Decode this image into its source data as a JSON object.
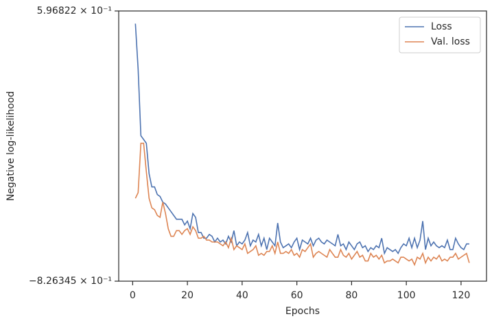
{
  "chart_data": {
    "type": "line",
    "xlabel": "Epochs",
    "ylabel": "Negative log-likelihood",
    "x": [
      1,
      2,
      3,
      4,
      5,
      6,
      7,
      8,
      9,
      10,
      11,
      12,
      13,
      14,
      15,
      16,
      17,
      18,
      19,
      20,
      21,
      22,
      23,
      24,
      25,
      26,
      27,
      28,
      29,
      30,
      31,
      32,
      33,
      34,
      35,
      36,
      37,
      38,
      39,
      40,
      41,
      42,
      43,
      44,
      45,
      46,
      47,
      48,
      49,
      50,
      51,
      52,
      53,
      54,
      55,
      56,
      57,
      58,
      59,
      60,
      61,
      62,
      63,
      64,
      65,
      66,
      67,
      68,
      69,
      70,
      71,
      72,
      73,
      74,
      75,
      76,
      77,
      78,
      79,
      80,
      81,
      82,
      83,
      84,
      85,
      86,
      87,
      88,
      89,
      90,
      91,
      92,
      93,
      94,
      95,
      96,
      97,
      98,
      99,
      100,
      101,
      102,
      103,
      104,
      105,
      106,
      107,
      108,
      109,
      110,
      111,
      112,
      113,
      114,
      115,
      116,
      117,
      118,
      119,
      120,
      121,
      122,
      123
    ],
    "series": [
      {
        "name": "Loss",
        "color": "#4c72b0",
        "values": [
          0.53,
          0.29,
          -0.06,
          -0.08,
          -0.1,
          -0.26,
          -0.33,
          -0.33,
          -0.37,
          -0.38,
          -0.41,
          -0.42,
          -0.44,
          -0.46,
          -0.48,
          -0.5,
          -0.5,
          -0.5,
          -0.53,
          -0.51,
          -0.55,
          -0.47,
          -0.49,
          -0.57,
          -0.57,
          -0.6,
          -0.6,
          -0.58,
          -0.59,
          -0.62,
          -0.6,
          -0.62,
          -0.61,
          -0.63,
          -0.59,
          -0.62,
          -0.56,
          -0.64,
          -0.62,
          -0.63,
          -0.61,
          -0.57,
          -0.64,
          -0.61,
          -0.62,
          -0.58,
          -0.64,
          -0.6,
          -0.66,
          -0.6,
          -0.62,
          -0.64,
          -0.52,
          -0.62,
          -0.65,
          -0.64,
          -0.63,
          -0.65,
          -0.62,
          -0.6,
          -0.66,
          -0.61,
          -0.62,
          -0.63,
          -0.6,
          -0.64,
          -0.61,
          -0.6,
          -0.62,
          -0.63,
          -0.61,
          -0.62,
          -0.63,
          -0.64,
          -0.58,
          -0.64,
          -0.63,
          -0.66,
          -0.62,
          -0.64,
          -0.66,
          -0.63,
          -0.62,
          -0.65,
          -0.64,
          -0.67,
          -0.65,
          -0.66,
          -0.64,
          -0.65,
          -0.6,
          -0.68,
          -0.65,
          -0.66,
          -0.67,
          -0.66,
          -0.68,
          -0.65,
          -0.63,
          -0.64,
          -0.6,
          -0.65,
          -0.6,
          -0.65,
          -0.61,
          -0.51,
          -0.66,
          -0.6,
          -0.64,
          -0.62,
          -0.64,
          -0.65,
          -0.64,
          -0.65,
          -0.61,
          -0.66,
          -0.66,
          -0.6,
          -0.63,
          -0.65,
          -0.66,
          -0.63,
          -0.63
        ]
      },
      {
        "name": "Val. loss",
        "color": "#dd8452",
        "values": [
          -0.39,
          -0.36,
          -0.1,
          -0.1,
          -0.25,
          -0.39,
          -0.44,
          -0.45,
          -0.48,
          -0.49,
          -0.41,
          -0.47,
          -0.55,
          -0.59,
          -0.59,
          -0.56,
          -0.56,
          -0.58,
          -0.56,
          -0.55,
          -0.58,
          -0.54,
          -0.56,
          -0.6,
          -0.6,
          -0.59,
          -0.61,
          -0.61,
          -0.62,
          -0.62,
          -0.62,
          -0.63,
          -0.64,
          -0.62,
          -0.65,
          -0.6,
          -0.66,
          -0.64,
          -0.65,
          -0.66,
          -0.63,
          -0.68,
          -0.67,
          -0.66,
          -0.64,
          -0.69,
          -0.68,
          -0.69,
          -0.67,
          -0.67,
          -0.64,
          -0.68,
          -0.62,
          -0.68,
          -0.68,
          -0.67,
          -0.68,
          -0.66,
          -0.69,
          -0.68,
          -0.7,
          -0.66,
          -0.67,
          -0.65,
          -0.63,
          -0.7,
          -0.68,
          -0.67,
          -0.68,
          -0.69,
          -0.7,
          -0.66,
          -0.68,
          -0.7,
          -0.7,
          -0.66,
          -0.69,
          -0.7,
          -0.68,
          -0.71,
          -0.69,
          -0.67,
          -0.7,
          -0.69,
          -0.72,
          -0.72,
          -0.68,
          -0.7,
          -0.69,
          -0.71,
          -0.69,
          -0.73,
          -0.72,
          -0.72,
          -0.71,
          -0.72,
          -0.73,
          -0.7,
          -0.7,
          -0.71,
          -0.72,
          -0.71,
          -0.74,
          -0.7,
          -0.71,
          -0.68,
          -0.73,
          -0.7,
          -0.72,
          -0.7,
          -0.71,
          -0.69,
          -0.72,
          -0.71,
          -0.72,
          -0.7,
          -0.7,
          -0.68,
          -0.71,
          -0.7,
          -0.69,
          -0.68,
          -0.73
        ]
      }
    ],
    "xlim": [
      -5.1,
      129.3
    ],
    "xticks": [
      0,
      20,
      40,
      60,
      80,
      100,
      120
    ],
    "ylim": [
      -0.826345,
      0.596822
    ],
    "yticks": [
      {
        "value": -0.826345,
        "label": "−8.26345 × 10⁻¹"
      },
      {
        "value": 0.596822,
        "label": "5.96822 × 10⁻¹"
      }
    ],
    "legend": "upper right"
  }
}
